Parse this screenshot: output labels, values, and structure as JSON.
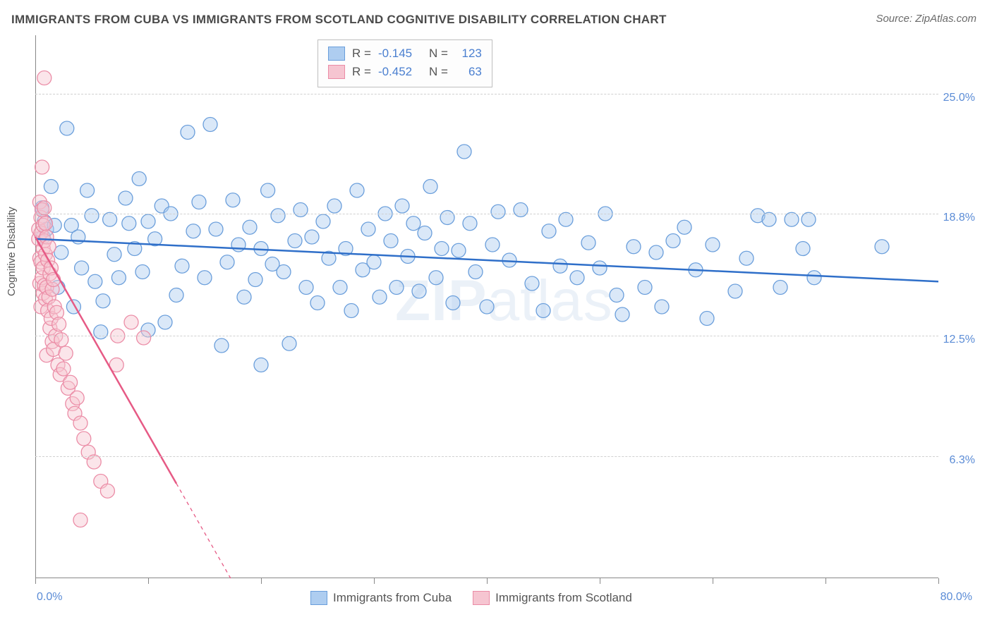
{
  "title": "IMMIGRANTS FROM CUBA VS IMMIGRANTS FROM SCOTLAND COGNITIVE DISABILITY CORRELATION CHART",
  "source": "Source: ZipAtlas.com",
  "watermark": "ZIPatlas",
  "y_axis_title": "Cognitive Disability",
  "chart": {
    "type": "scatter",
    "xlim": [
      0,
      80
    ],
    "ylim": [
      0,
      28
    ],
    "x_axis_start_label": "0.0%",
    "x_axis_end_label": "80.0%",
    "x_tick_positions": [
      0,
      10,
      20,
      30,
      40,
      50,
      60,
      70,
      80
    ],
    "y_ticks": [
      {
        "value": 6.3,
        "label": "6.3%"
      },
      {
        "value": 12.5,
        "label": "12.5%"
      },
      {
        "value": 18.8,
        "label": "18.8%"
      },
      {
        "value": 25.0,
        "label": "25.0%"
      }
    ],
    "background_color": "#ffffff",
    "grid_color": "#d0d0d0",
    "marker_radius": 10,
    "marker_opacity": 0.45,
    "watermark_color": "rgba(120,160,210,0.15)"
  },
  "series": [
    {
      "name": "Immigrants from Cuba",
      "color_fill": "#aecdf0",
      "color_stroke": "#6a9edb",
      "line_color": "#2f6fc9",
      "line_width": 2.5,
      "R": "-0.145",
      "N": "123",
      "trend": {
        "x1": 0,
        "y1": 17.5,
        "x2": 80,
        "y2": 15.3,
        "dash_after_x": 80
      },
      "points": [
        [
          0.6,
          19.0
        ],
        [
          0.6,
          19.1
        ],
        [
          0.7,
          17.6
        ],
        [
          0.8,
          18.4
        ],
        [
          1.0,
          18.0
        ],
        [
          1.4,
          20.2
        ],
        [
          1.7,
          18.2
        ],
        [
          2.0,
          15.0
        ],
        [
          2.3,
          16.8
        ],
        [
          2.8,
          23.2
        ],
        [
          3.2,
          18.2
        ],
        [
          3.4,
          14.0
        ],
        [
          3.8,
          17.6
        ],
        [
          4.1,
          16.0
        ],
        [
          4.6,
          20.0
        ],
        [
          5.0,
          18.7
        ],
        [
          5.3,
          15.3
        ],
        [
          5.8,
          12.7
        ],
        [
          6.0,
          14.3
        ],
        [
          6.6,
          18.5
        ],
        [
          7.0,
          16.7
        ],
        [
          7.4,
          15.5
        ],
        [
          8.0,
          19.6
        ],
        [
          8.3,
          18.3
        ],
        [
          8.8,
          17.0
        ],
        [
          9.2,
          20.6
        ],
        [
          9.5,
          15.8
        ],
        [
          10.0,
          18.4
        ],
        [
          10.0,
          12.8
        ],
        [
          10.6,
          17.5
        ],
        [
          11.2,
          19.2
        ],
        [
          11.5,
          13.2
        ],
        [
          12.0,
          18.8
        ],
        [
          12.5,
          14.6
        ],
        [
          13.0,
          16.1
        ],
        [
          13.5,
          23.0
        ],
        [
          14.0,
          17.9
        ],
        [
          14.5,
          19.4
        ],
        [
          15.0,
          15.5
        ],
        [
          15.5,
          23.4
        ],
        [
          16.0,
          18.0
        ],
        [
          16.5,
          12.0
        ],
        [
          17.0,
          16.3
        ],
        [
          17.5,
          19.5
        ],
        [
          18.0,
          17.2
        ],
        [
          18.5,
          14.5
        ],
        [
          19.0,
          18.1
        ],
        [
          19.5,
          15.4
        ],
        [
          20.0,
          17.0
        ],
        [
          20.0,
          11.0
        ],
        [
          20.6,
          20.0
        ],
        [
          21.0,
          16.2
        ],
        [
          21.5,
          18.7
        ],
        [
          22.0,
          15.8
        ],
        [
          22.5,
          12.1
        ],
        [
          23.0,
          17.4
        ],
        [
          23.5,
          19.0
        ],
        [
          24.0,
          15.0
        ],
        [
          24.5,
          17.6
        ],
        [
          25.0,
          14.2
        ],
        [
          25.5,
          18.4
        ],
        [
          26.0,
          16.5
        ],
        [
          26.5,
          19.2
        ],
        [
          27.0,
          15.0
        ],
        [
          27.5,
          17.0
        ],
        [
          28.0,
          13.8
        ],
        [
          28.5,
          20.0
        ],
        [
          29.0,
          15.9
        ],
        [
          29.5,
          18.0
        ],
        [
          30.0,
          16.3
        ],
        [
          30.5,
          14.5
        ],
        [
          31.0,
          18.8
        ],
        [
          31.5,
          17.4
        ],
        [
          32.0,
          15.0
        ],
        [
          32.5,
          19.2
        ],
        [
          33.0,
          16.6
        ],
        [
          33.5,
          18.3
        ],
        [
          34.0,
          14.8
        ],
        [
          34.5,
          17.8
        ],
        [
          35.0,
          20.2
        ],
        [
          35.5,
          15.5
        ],
        [
          36.0,
          17.0
        ],
        [
          36.5,
          18.6
        ],
        [
          37.0,
          14.2
        ],
        [
          37.5,
          16.9
        ],
        [
          38.0,
          22.0
        ],
        [
          38.5,
          18.3
        ],
        [
          39.0,
          15.8
        ],
        [
          40.0,
          14.0
        ],
        [
          40.5,
          17.2
        ],
        [
          41.0,
          18.9
        ],
        [
          42.0,
          16.4
        ],
        [
          43.0,
          19.0
        ],
        [
          44.0,
          15.2
        ],
        [
          45.0,
          13.8
        ],
        [
          45.5,
          17.9
        ],
        [
          46.5,
          16.1
        ],
        [
          47.0,
          18.5
        ],
        [
          48.0,
          15.5
        ],
        [
          49.0,
          17.3
        ],
        [
          50.0,
          16.0
        ],
        [
          50.5,
          18.8
        ],
        [
          51.5,
          14.6
        ],
        [
          52.0,
          13.6
        ],
        [
          53.0,
          17.1
        ],
        [
          54.0,
          15.0
        ],
        [
          55.0,
          16.8
        ],
        [
          55.5,
          14.0
        ],
        [
          56.5,
          17.4
        ],
        [
          57.5,
          18.1
        ],
        [
          58.5,
          15.9
        ],
        [
          59.5,
          13.4
        ],
        [
          60.0,
          17.2
        ],
        [
          62.0,
          14.8
        ],
        [
          63.0,
          16.5
        ],
        [
          64.0,
          18.7
        ],
        [
          65.0,
          18.5
        ],
        [
          66.0,
          15.0
        ],
        [
          67.0,
          18.5
        ],
        [
          68.0,
          17.0
        ],
        [
          68.5,
          18.5
        ],
        [
          69.0,
          15.5
        ],
        [
          75.0,
          17.1
        ]
      ]
    },
    {
      "name": "Immigrants from Scotland",
      "color_fill": "#f6c5d1",
      "color_stroke": "#eb8ca6",
      "line_color": "#e65a85",
      "line_width": 2.5,
      "R": "-0.452",
      "N": "63",
      "trend": {
        "x1": 0,
        "y1": 17.6,
        "x2": 17.3,
        "y2": 0,
        "dash_after_x": 12.5
      },
      "points": [
        [
          0.3,
          17.5
        ],
        [
          0.3,
          18.0
        ],
        [
          0.4,
          16.5
        ],
        [
          0.4,
          19.4
        ],
        [
          0.4,
          15.2
        ],
        [
          0.5,
          17.8
        ],
        [
          0.5,
          14.0
        ],
        [
          0.5,
          18.6
        ],
        [
          0.5,
          16.3
        ],
        [
          0.6,
          19.0
        ],
        [
          0.6,
          15.5
        ],
        [
          0.6,
          21.2
        ],
        [
          0.7,
          17.0
        ],
        [
          0.7,
          14.7
        ],
        [
          0.7,
          18.2
        ],
        [
          0.7,
          16.0
        ],
        [
          0.8,
          19.1
        ],
        [
          0.8,
          15.1
        ],
        [
          0.8,
          17.4
        ],
        [
          0.8,
          25.8
        ],
        [
          0.9,
          16.7
        ],
        [
          0.9,
          18.3
        ],
        [
          0.9,
          14.4
        ],
        [
          1.0,
          17.6
        ],
        [
          1.0,
          15.0
        ],
        [
          1.0,
          11.5
        ],
        [
          1.1,
          16.4
        ],
        [
          1.1,
          13.8
        ],
        [
          1.2,
          17.1
        ],
        [
          1.2,
          14.5
        ],
        [
          1.3,
          15.7
        ],
        [
          1.3,
          12.9
        ],
        [
          1.4,
          16.0
        ],
        [
          1.4,
          13.4
        ],
        [
          1.5,
          14.9
        ],
        [
          1.5,
          12.2
        ],
        [
          1.6,
          15.4
        ],
        [
          1.6,
          11.8
        ],
        [
          1.7,
          14.0
        ],
        [
          1.8,
          12.5
        ],
        [
          1.9,
          13.7
        ],
        [
          2.0,
          11.0
        ],
        [
          2.1,
          13.1
        ],
        [
          2.2,
          10.5
        ],
        [
          2.3,
          12.3
        ],
        [
          2.5,
          10.8
        ],
        [
          2.7,
          11.6
        ],
        [
          2.9,
          9.8
        ],
        [
          3.1,
          10.1
        ],
        [
          3.3,
          9.0
        ],
        [
          3.5,
          8.5
        ],
        [
          3.7,
          9.3
        ],
        [
          4.0,
          8.0
        ],
        [
          4.3,
          7.2
        ],
        [
          4.7,
          6.5
        ],
        [
          5.2,
          6.0
        ],
        [
          5.8,
          5.0
        ],
        [
          6.4,
          4.5
        ],
        [
          4.0,
          3.0
        ],
        [
          7.3,
          12.5
        ],
        [
          7.2,
          11.0
        ],
        [
          8.5,
          13.2
        ],
        [
          9.6,
          12.4
        ]
      ]
    }
  ],
  "stats_legend": {
    "rows": [
      {
        "series": 0,
        "R_label": "R =",
        "N_label": "N ="
      },
      {
        "series": 1,
        "R_label": "R =",
        "N_label": "N ="
      }
    ]
  },
  "bottom_legend": [
    {
      "series": 0
    },
    {
      "series": 1
    }
  ]
}
